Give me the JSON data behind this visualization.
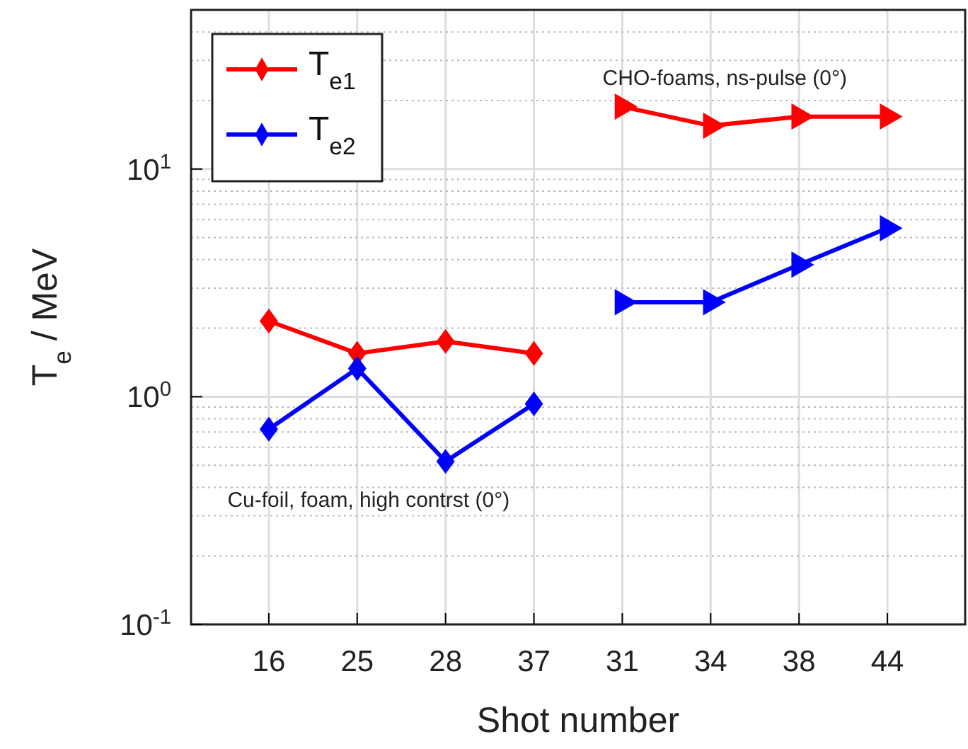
{
  "chart_data": {
    "type": "line",
    "xlabel": "Shot number",
    "ylabel": "T$_{e}$ / MeV",
    "categories": [
      "16",
      "25",
      "28",
      "37",
      "31",
      "34",
      "38",
      "44"
    ],
    "series": [
      {
        "name": "T$_{e1}$",
        "color": "#ff0000",
        "marker": "diamond",
        "values": [
          2.15,
          1.55,
          1.75,
          1.55,
          null,
          null,
          null,
          null
        ]
      },
      {
        "name": "T$_{e2}$",
        "color": "#0000ff",
        "marker": "diamond",
        "values": [
          0.72,
          1.33,
          0.52,
          0.93,
          null,
          null,
          null,
          null
        ]
      },
      {
        "color": "#ff0000",
        "marker": "triangle",
        "values": [
          null,
          null,
          null,
          null,
          18.8,
          15.5,
          17,
          17
        ]
      },
      {
        "color": "#0000ff",
        "marker": "triangle",
        "values": [
          null,
          null,
          null,
          null,
          2.6,
          2.6,
          3.8,
          5.5
        ]
      }
    ],
    "log": true,
    "ylim": [
      0.1,
      50
    ],
    "yticks": [
      {
        "value": 0.1,
        "label": "10$^{-1}$"
      },
      {
        "value": 1,
        "label": "10$^{0}$"
      },
      {
        "value": 10,
        "label": "10$^{1}$"
      }
    ],
    "grid": true,
    "legend": "top left",
    "line_style": "solid",
    "annotations": [
      "CHO-foams, ns-pulse (0°)",
      "Cu-foil, foam, high contrst (0°)"
    ]
  }
}
